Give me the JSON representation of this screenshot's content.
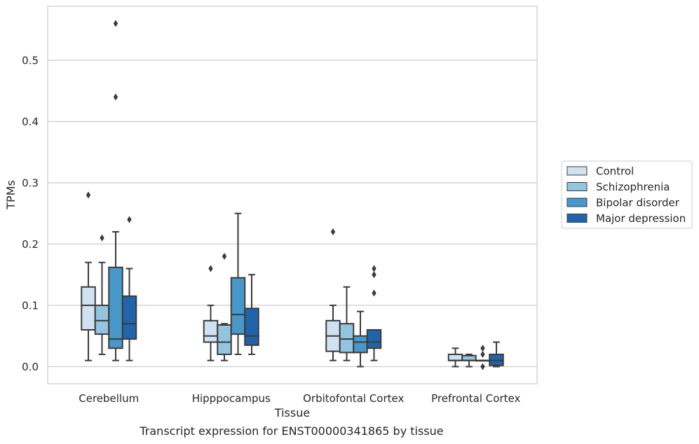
{
  "chart_data": {
    "type": "box",
    "xlabel": "Tissue",
    "ylabel": "TPMs",
    "ylim": [
      -0.028,
      0.588
    ],
    "yticks": [
      0.0,
      0.1,
      0.2,
      0.3,
      0.4,
      0.5
    ],
    "ytick_labels": [
      "0.0",
      "0.1",
      "0.2",
      "0.3",
      "0.4",
      "0.5"
    ],
    "grid": "horizontal",
    "legend_position": "right",
    "categories": [
      "Cerebellum",
      "Hipppocampus",
      "Orbitofontal Cortex",
      "Prefrontal Cortex"
    ],
    "series": [
      {
        "name": "Control",
        "color": "#d0e1f2",
        "boxes": [
          {
            "whislo": 0.01,
            "q1": 0.06,
            "med": 0.1,
            "q3": 0.13,
            "whishi": 0.17,
            "fliers": [
              0.28
            ]
          },
          {
            "whislo": 0.01,
            "q1": 0.04,
            "med": 0.05,
            "q3": 0.075,
            "whishi": 0.1,
            "fliers": [
              0.16
            ]
          },
          {
            "whislo": 0.01,
            "q1": 0.025,
            "med": 0.05,
            "q3": 0.075,
            "whishi": 0.1,
            "fliers": [
              0.22
            ]
          },
          {
            "whislo": 0.0,
            "q1": 0.01,
            "med": 0.01,
            "q3": 0.02,
            "whishi": 0.03,
            "fliers": []
          }
        ]
      },
      {
        "name": "Schizophrenia",
        "color": "#94c4df",
        "boxes": [
          {
            "whislo": 0.02,
            "q1": 0.053,
            "med": 0.075,
            "q3": 0.1,
            "whishi": 0.17,
            "fliers": [
              0.21
            ]
          },
          {
            "whislo": 0.01,
            "q1": 0.02,
            "med": 0.04,
            "q3": 0.068,
            "whishi": 0.07,
            "fliers": [
              0.18
            ]
          },
          {
            "whislo": 0.01,
            "q1": 0.023,
            "med": 0.045,
            "q3": 0.07,
            "whishi": 0.13,
            "fliers": []
          },
          {
            "whislo": 0.0,
            "q1": 0.01,
            "med": 0.01,
            "q3": 0.018,
            "whishi": 0.02,
            "fliers": []
          }
        ]
      },
      {
        "name": "Bipolar disorder",
        "color": "#4a98c9",
        "boxes": [
          {
            "whislo": 0.01,
            "q1": 0.03,
            "med": 0.045,
            "q3": 0.162,
            "whishi": 0.22,
            "fliers": [
              0.44,
              0.56
            ]
          },
          {
            "whislo": 0.02,
            "q1": 0.053,
            "med": 0.085,
            "q3": 0.145,
            "whishi": 0.25,
            "fliers": []
          },
          {
            "whislo": 0.0,
            "q1": 0.023,
            "med": 0.04,
            "q3": 0.05,
            "whishi": 0.09,
            "fliers": []
          },
          {
            "whislo": 0.01,
            "q1": 0.01,
            "med": 0.01,
            "q3": 0.01,
            "whishi": 0.01,
            "fliers": [
              0.0,
              0.02,
              0.03
            ]
          }
        ]
      },
      {
        "name": "Major depression",
        "color": "#2164ab",
        "boxes": [
          {
            "whislo": 0.01,
            "q1": 0.045,
            "med": 0.07,
            "q3": 0.115,
            "whishi": 0.16,
            "fliers": [
              0.24
            ]
          },
          {
            "whislo": 0.02,
            "q1": 0.035,
            "med": 0.05,
            "q3": 0.095,
            "whishi": 0.15,
            "fliers": []
          },
          {
            "whislo": 0.01,
            "q1": 0.03,
            "med": 0.04,
            "q3": 0.06,
            "whishi": 0.06,
            "fliers": [
              0.12,
              0.15,
              0.16
            ]
          },
          {
            "whislo": 0.0,
            "q1": 0.002,
            "med": 0.01,
            "q3": 0.02,
            "whishi": 0.04,
            "fliers": []
          }
        ]
      }
    ]
  },
  "caption": "Transcript expression for ENST00000341865 by tissue"
}
